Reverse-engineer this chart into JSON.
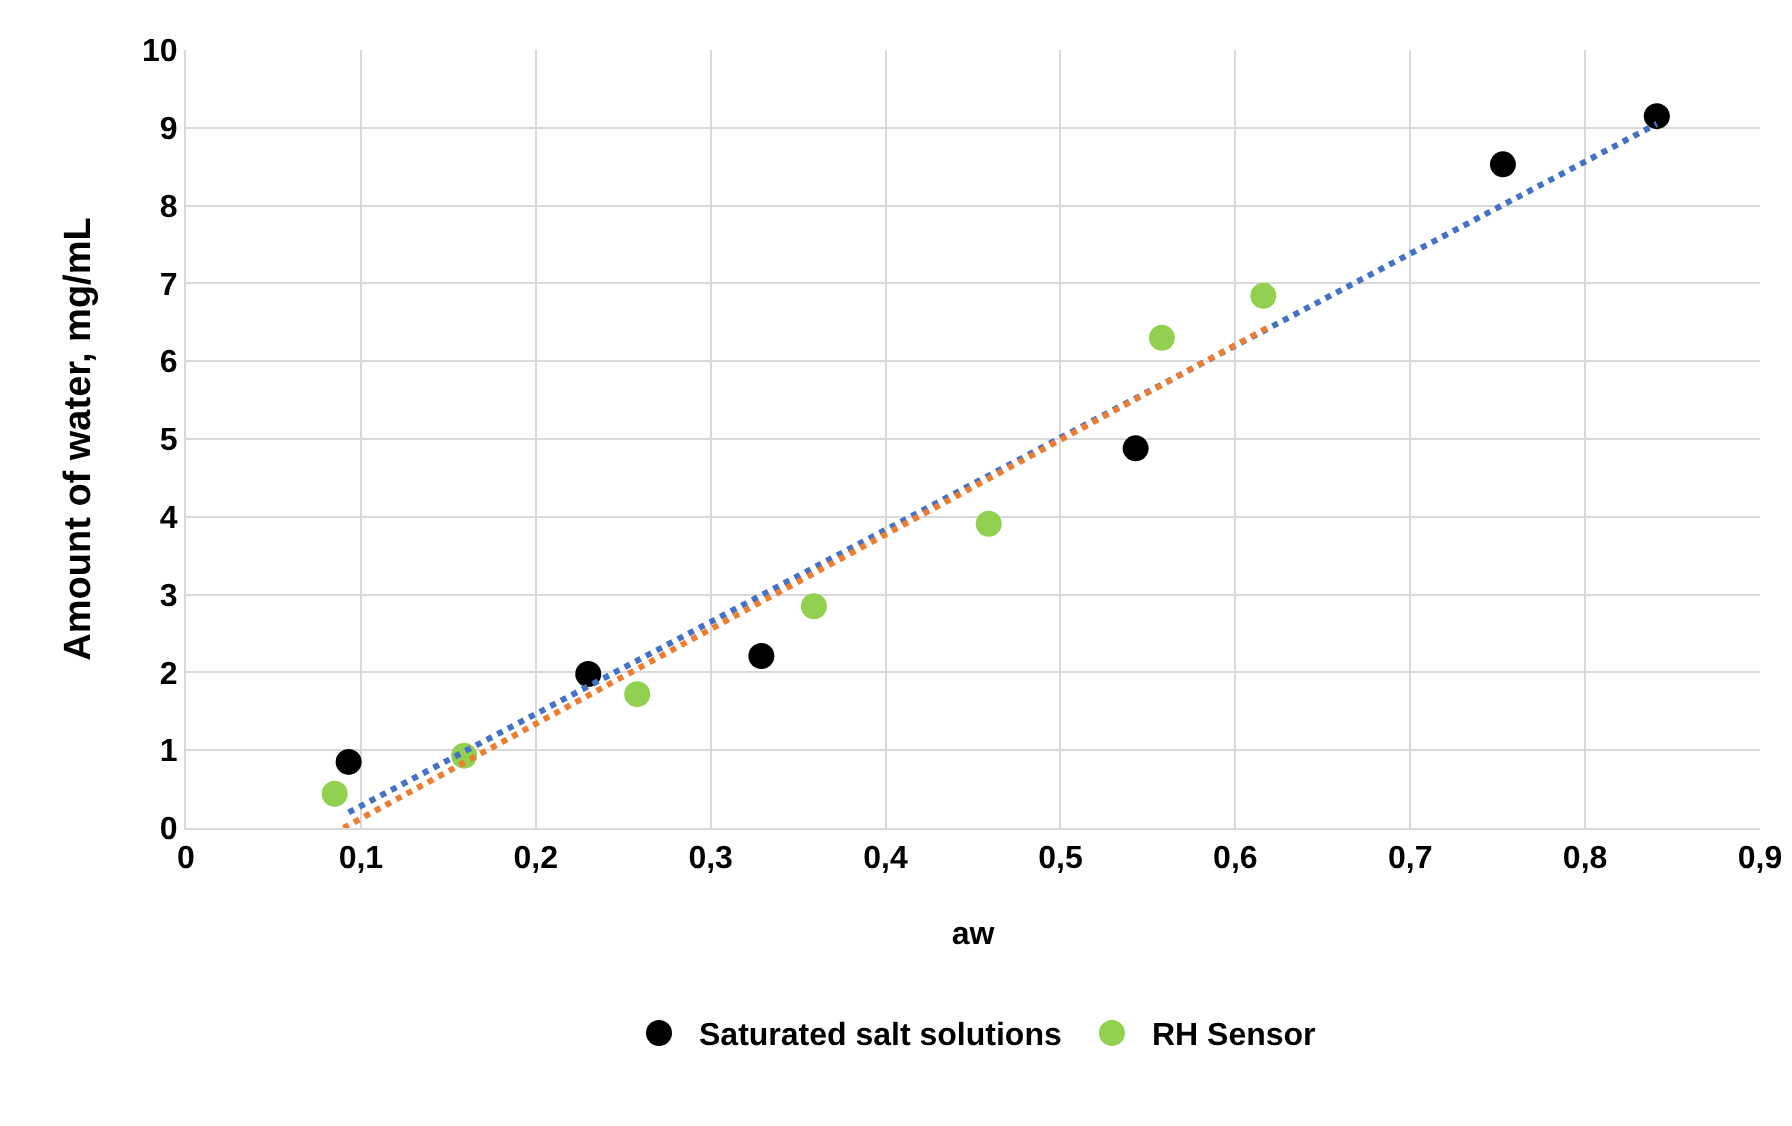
{
  "chart_data": {
    "type": "scatter",
    "xlabel": "aw",
    "ylabel": "Amount of water, mg/mL",
    "xlim": [
      0,
      0.9
    ],
    "xticks": [
      0,
      {
        "value": 0.1,
        "label": "0,1"
      },
      {
        "value": 0.2,
        "label": "0,2"
      },
      {
        "value": 0.3,
        "label": "0,3"
      },
      {
        "value": 0.4,
        "label": "0,4"
      },
      {
        "value": 0.5,
        "label": "0,5"
      },
      {
        "value": 0.6,
        "label": "0,6"
      },
      {
        "value": 0.7,
        "label": "0,7"
      },
      {
        "value": 0.8,
        "label": "0,8"
      },
      {
        "value": 0.9,
        "label": "0,9"
      }
    ],
    "ylim": [
      0,
      10
    ],
    "yticks": [
      0,
      1,
      2,
      3,
      4,
      5,
      6,
      7,
      8,
      9,
      10
    ],
    "grid": true,
    "legend": "bottom",
    "marker": "circle",
    "series": [
      {
        "name": "Saturated salt solutions",
        "color": "#000000",
        "x": [
          0.093,
          0.23,
          0.329,
          0.543,
          0.753,
          0.841
        ],
        "values": [
          0.85,
          1.98,
          2.21,
          4.88,
          8.53,
          9.15
        ]
      },
      {
        "name": "RH Sensor",
        "color": "#92d050",
        "x": [
          0.085,
          0.159,
          0.258,
          0.359,
          0.459,
          0.558,
          0.616
        ],
        "values": [
          0.44,
          0.93,
          1.72,
          2.85,
          3.91,
          6.3,
          6.84
        ]
      },
      {
        "type": "line",
        "color": "#4472c4",
        "line_style": "dotted",
        "marker": "none",
        "x": [
          0.093,
          0.841
        ],
        "values": [
          0.2,
          9.05
        ]
      },
      {
        "type": "line",
        "color": "#ed7d31",
        "line_style": "dotted",
        "marker": "none",
        "x": [
          0.09,
          0.62
        ],
        "values": [
          0,
          6.45
        ]
      }
    ]
  }
}
